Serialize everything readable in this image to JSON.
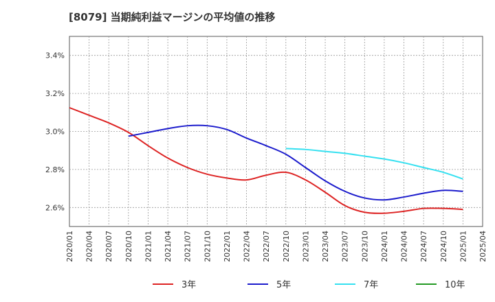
{
  "chart_data": {
    "type": "line",
    "title": "[8079]  当期純利益マージンの平均値の推移",
    "xlabel": "",
    "ylabel": "",
    "x": [
      "2020/01",
      "2020/04",
      "2020/07",
      "2020/10",
      "2021/01",
      "2021/04",
      "2021/07",
      "2021/10",
      "2022/01",
      "2022/04",
      "2022/07",
      "2022/10",
      "2023/01",
      "2023/04",
      "2023/07",
      "2023/10",
      "2024/01",
      "2024/04",
      "2024/07",
      "2024/10",
      "2025/01",
      "2025/04"
    ],
    "ylim": [
      2.5,
      3.5
    ],
    "yticks": [
      2.6,
      2.8,
      3.0,
      3.2,
      3.4
    ],
    "ytick_labels": [
      "2.6%",
      "2.8%",
      "3.0%",
      "3.2%",
      "3.4%"
    ],
    "grid": true,
    "legend_position": "bottom",
    "series": [
      {
        "name": "3年",
        "color": "#dd2222",
        "values": [
          3.125,
          3.085,
          3.045,
          2.995,
          2.925,
          2.86,
          2.81,
          2.775,
          2.755,
          2.745,
          2.77,
          2.785,
          2.745,
          2.68,
          2.61,
          2.575,
          2.57,
          2.58,
          2.595,
          2.595,
          2.59,
          null
        ]
      },
      {
        "name": "5年",
        "color": "#1a1acc",
        "values": [
          null,
          null,
          null,
          2.975,
          2.995,
          3.015,
          3.03,
          3.03,
          3.01,
          2.965,
          2.925,
          2.88,
          2.81,
          2.74,
          2.685,
          2.65,
          2.64,
          2.655,
          2.675,
          2.69,
          2.685,
          null
        ]
      },
      {
        "name": "7年",
        "color": "#33e0f0",
        "values": [
          null,
          null,
          null,
          null,
          null,
          null,
          null,
          null,
          null,
          null,
          null,
          2.91,
          2.905,
          2.895,
          2.885,
          2.87,
          2.855,
          2.835,
          2.81,
          2.785,
          2.75,
          null
        ]
      },
      {
        "name": "10年",
        "color": "#229922",
        "values": [
          null,
          null,
          null,
          null,
          null,
          null,
          null,
          null,
          null,
          null,
          null,
          null,
          null,
          null,
          null,
          null,
          null,
          null,
          null,
          null,
          null,
          null
        ]
      }
    ]
  }
}
